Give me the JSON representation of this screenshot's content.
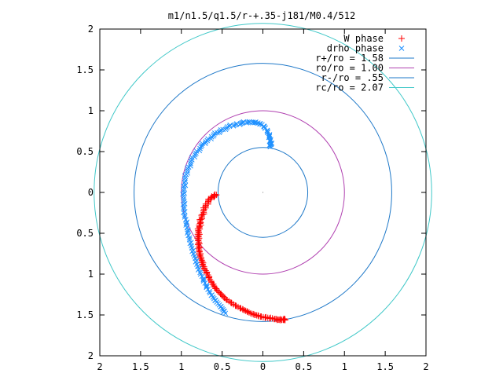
{
  "chart_data": {
    "type": "scatter",
    "title": "m1/n1.5/q1.5/r-+.35-j181/M0.4/512",
    "xlim": [
      -2,
      2
    ],
    "ylim": [
      -2,
      2
    ],
    "x_ticks": [
      -2,
      -1.5,
      -1,
      -0.5,
      0,
      0.5,
      1,
      1.5,
      2
    ],
    "y_ticks": [
      -2,
      -1.5,
      -1,
      -0.5,
      0,
      0.5,
      1,
      1.5,
      2
    ],
    "x_tick_labels": [
      "2",
      "1.5",
      "1",
      "0.5",
      "0",
      "0.5",
      "1",
      "1.5",
      "2"
    ],
    "y_tick_labels": [
      "2",
      "1.5",
      "1",
      "0.5",
      "0",
      "0.5",
      "1",
      "1.5",
      "2"
    ],
    "grid": false,
    "legend_position": "top-right",
    "series": [
      {
        "name": "W phase",
        "marker": "plus",
        "color": "#ff0000",
        "points": [
          [
            -0.57,
            -0.03
          ],
          [
            -0.6,
            -0.04
          ],
          [
            -0.64,
            -0.07
          ],
          [
            -0.67,
            -0.11
          ],
          [
            -0.7,
            -0.16
          ],
          [
            -0.72,
            -0.21
          ],
          [
            -0.74,
            -0.27
          ],
          [
            -0.76,
            -0.33
          ],
          [
            -0.77,
            -0.38
          ],
          [
            -0.78,
            -0.43
          ],
          [
            -0.79,
            -0.48
          ],
          [
            -0.79,
            -0.53
          ],
          [
            -0.79,
            -0.58
          ],
          [
            -0.79,
            -0.63
          ],
          [
            -0.78,
            -0.68
          ],
          [
            -0.78,
            -0.73
          ],
          [
            -0.77,
            -0.78
          ],
          [
            -0.75,
            -0.83
          ],
          [
            -0.74,
            -0.88
          ],
          [
            -0.72,
            -0.93
          ],
          [
            -0.69,
            -0.98
          ],
          [
            -0.66,
            -1.04
          ],
          [
            -0.63,
            -1.1
          ],
          [
            -0.59,
            -1.16
          ],
          [
            -0.55,
            -1.21
          ],
          [
            -0.5,
            -1.26
          ],
          [
            -0.45,
            -1.31
          ],
          [
            -0.39,
            -1.35
          ],
          [
            -0.33,
            -1.39
          ],
          [
            -0.27,
            -1.42
          ],
          [
            -0.21,
            -1.45
          ],
          [
            -0.15,
            -1.48
          ],
          [
            -0.09,
            -1.5
          ],
          [
            -0.03,
            -1.52
          ],
          [
            0.03,
            -1.53
          ],
          [
            0.09,
            -1.54
          ],
          [
            0.15,
            -1.55
          ],
          [
            0.2,
            -1.56
          ],
          [
            0.25,
            -1.56
          ],
          [
            0.27,
            -1.55
          ]
        ]
      },
      {
        "name": "drho phase",
        "marker": "cross",
        "color": "#1e90ff",
        "points": [
          [
            0.09,
            0.56
          ],
          [
            0.1,
            0.6
          ],
          [
            0.09,
            0.64
          ],
          [
            0.08,
            0.69
          ],
          [
            0.06,
            0.74
          ],
          [
            0.03,
            0.79
          ],
          [
            -0.01,
            0.83
          ],
          [
            -0.06,
            0.85
          ],
          [
            -0.12,
            0.86
          ],
          [
            -0.19,
            0.86
          ],
          [
            -0.26,
            0.85
          ],
          [
            -0.33,
            0.83
          ],
          [
            -0.41,
            0.81
          ],
          [
            -0.49,
            0.77
          ],
          [
            -0.56,
            0.73
          ],
          [
            -0.63,
            0.68
          ],
          [
            -0.7,
            0.62
          ],
          [
            -0.76,
            0.56
          ],
          [
            -0.82,
            0.48
          ],
          [
            -0.87,
            0.4
          ],
          [
            -0.91,
            0.31
          ],
          [
            -0.94,
            0.22
          ],
          [
            -0.96,
            0.12
          ],
          [
            -0.97,
            0.02
          ],
          [
            -0.97,
            -0.08
          ],
          [
            -0.97,
            -0.18
          ],
          [
            -0.96,
            -0.28
          ],
          [
            -0.94,
            -0.38
          ],
          [
            -0.92,
            -0.48
          ],
          [
            -0.9,
            -0.58
          ],
          [
            -0.87,
            -0.68
          ],
          [
            -0.84,
            -0.78
          ],
          [
            -0.81,
            -0.88
          ],
          [
            -0.77,
            -0.98
          ],
          [
            -0.73,
            -1.07
          ],
          [
            -0.69,
            -1.15
          ],
          [
            -0.65,
            -1.23
          ],
          [
            -0.6,
            -1.3
          ],
          [
            -0.55,
            -1.36
          ],
          [
            -0.5,
            -1.42
          ],
          [
            -0.46,
            -1.48
          ]
        ]
      }
    ],
    "circles": [
      {
        "name": "r+/ro = 1.58",
        "radius": 1.58,
        "color": "#1e78c8"
      },
      {
        "name": "ro/ro = 1.00",
        "radius": 1.0,
        "color": "#b040b0"
      },
      {
        "name": "r-/ro = .55",
        "radius": 0.55,
        "color": "#1e78c8"
      },
      {
        "name": "rc/ro = 2.07",
        "radius": 2.07,
        "color": "#40c8c8"
      }
    ]
  }
}
